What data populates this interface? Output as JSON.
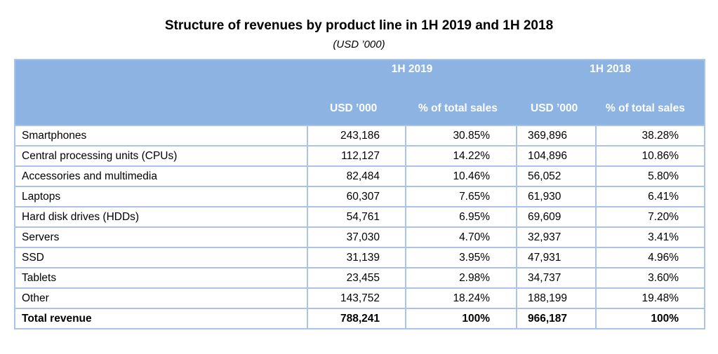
{
  "title": "Structure of revenues by product line in 1H 2019 and 1H 2018",
  "subtitle": "(USD ’000)",
  "chart_data": {
    "type": "table",
    "title": "Structure of revenues by product line in 1H 2019 and 1H 2018",
    "subtitle": "(USD ’000)",
    "column_groups": [
      "1H 2019",
      "1H 2018"
    ],
    "columns": [
      "USD ’000",
      "% of total sales",
      "USD ’000",
      "% of total sales"
    ],
    "rows": [
      {
        "label": "Smartphones",
        "usd_2019": "243,186",
        "pct_2019": "30.85%",
        "usd_2018": "369,896",
        "pct_2018": "38.28%"
      },
      {
        "label": "Central processing units (CPUs)",
        "usd_2019": "112,127",
        "pct_2019": "14.22%",
        "usd_2018": "104,896",
        "pct_2018": "10.86%"
      },
      {
        "label": "Accessories and multimedia",
        "usd_2019": "82,484",
        "pct_2019": "10.46%",
        "usd_2018": "56,052",
        "pct_2018": "5.80%"
      },
      {
        "label": "Laptops",
        "usd_2019": "60,307",
        "pct_2019": "7.65%",
        "usd_2018": "61,930",
        "pct_2018": "6.41%"
      },
      {
        "label": "Hard disk drives (HDDs)",
        "usd_2019": "54,761",
        "pct_2019": "6.95%",
        "usd_2018": "69,609",
        "pct_2018": "7.20%"
      },
      {
        "label": "Servers",
        "usd_2019": "37,030",
        "pct_2019": "4.70%",
        "usd_2018": "32,937",
        "pct_2018": "3.41%"
      },
      {
        "label": "SSD",
        "usd_2019": "31,139",
        "pct_2019": "3.95%",
        "usd_2018": "47,931",
        "pct_2018": "4.96%"
      },
      {
        "label": "Tablets",
        "usd_2019": "23,455",
        "pct_2019": "2.98%",
        "usd_2018": "34,737",
        "pct_2018": "3.60%"
      },
      {
        "label": "Other",
        "usd_2019": "143,752",
        "pct_2019": "18.24%",
        "usd_2018": "188,199",
        "pct_2018": "19.48%"
      }
    ],
    "total": {
      "label": "Total revenue",
      "usd_2019": "788,241",
      "pct_2019": "100%",
      "usd_2018": "966,187",
      "pct_2018": "100%"
    }
  },
  "colors": {
    "header_bg": "#8db3e2",
    "border": "#a9c4e6",
    "header_text": "#ffffff"
  }
}
